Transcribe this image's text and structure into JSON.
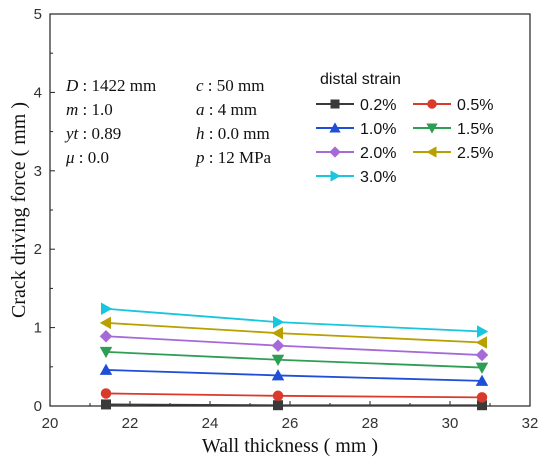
{
  "chart_data": {
    "type": "line",
    "xlabel": "Wall thickness ( mm )",
    "ylabel": "Crack driving force ( mm )",
    "xlim": [
      20,
      32
    ],
    "ylim": [
      0,
      5
    ],
    "xticks": [
      "20",
      "22",
      "24",
      "26",
      "28",
      "30",
      "32"
    ],
    "yticks": [
      "0",
      "1",
      "2",
      "3",
      "4",
      "5"
    ],
    "x": [
      21.4,
      25.7,
      30.8
    ],
    "legend_title": "distal strain",
    "legend_position": "top-right",
    "grid": false,
    "series": [
      {
        "name": "0.2%",
        "values": [
          0.02,
          0.01,
          0.01
        ],
        "color": "#3a3a3a",
        "marker": "square"
      },
      {
        "name": "0.5%",
        "values": [
          0.16,
          0.13,
          0.11
        ],
        "color": "#d93a2b",
        "marker": "circle"
      },
      {
        "name": "1.0%",
        "values": [
          0.46,
          0.39,
          0.32
        ],
        "color": "#1f4fd6",
        "marker": "triangle-up"
      },
      {
        "name": "1.5%",
        "values": [
          0.69,
          0.59,
          0.49
        ],
        "color": "#2f9e55",
        "marker": "triangle-down"
      },
      {
        "name": "2.0%",
        "values": [
          0.89,
          0.77,
          0.65
        ],
        "color": "#a66ad8",
        "marker": "diamond"
      },
      {
        "name": "2.5%",
        "values": [
          1.06,
          0.93,
          0.81
        ],
        "color": "#b8a000",
        "marker": "triangle-left"
      },
      {
        "name": "3.0%",
        "values": [
          1.24,
          1.07,
          0.95
        ],
        "color": "#18c6de",
        "marker": "triangle-right"
      }
    ],
    "annotations": {
      "left": [
        {
          "sym": "D",
          "text": " : 1422 mm"
        },
        {
          "sym": "m",
          "text": " : 1.0"
        },
        {
          "sym": "yt",
          "text": " : 0.89"
        },
        {
          "sym": "μ",
          "text": " : 0.0"
        }
      ],
      "right": [
        {
          "sym": "c",
          "text": " : 50 mm"
        },
        {
          "sym": "a",
          "text": " : 4 mm"
        },
        {
          "sym": "h",
          "text": " : 0.0 mm"
        },
        {
          "sym": "p",
          "text": " : 12 MPa"
        }
      ]
    }
  }
}
